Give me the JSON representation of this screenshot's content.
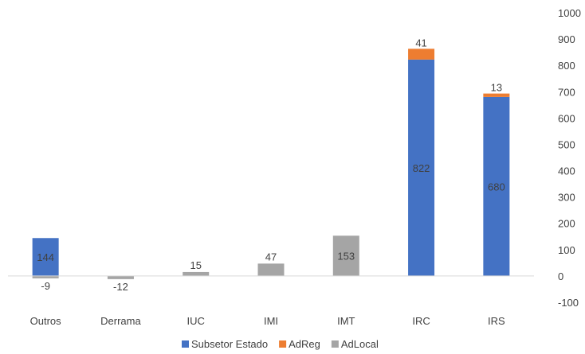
{
  "chart_data": {
    "type": "bar",
    "stacked": true,
    "categories": [
      "Outros",
      "Derrama",
      "IUC",
      "IMI",
      "IMT",
      "IRC",
      "IRS"
    ],
    "series": [
      {
        "name": "Subsetor Estado",
        "color": "#4472C4",
        "values": [
          144,
          0,
          0,
          0,
          0,
          822,
          680
        ]
      },
      {
        "name": "AdReg",
        "color": "#ED7D31",
        "values": [
          0,
          0,
          0,
          0,
          0,
          41,
          13
        ]
      },
      {
        "name": "AdLocal",
        "color": "#A5A5A5",
        "values": [
          -9,
          -12,
          15,
          47,
          153,
          0,
          0
        ]
      }
    ],
    "data_labels": [
      {
        "category": "Outros",
        "series": "Subsetor Estado",
        "text": "144"
      },
      {
        "category": "Outros",
        "series": "AdLocal",
        "text": "-9"
      },
      {
        "category": "Derrama",
        "series": "AdLocal",
        "text": "-12"
      },
      {
        "category": "IUC",
        "series": "AdLocal",
        "text": "15"
      },
      {
        "category": "IMI",
        "series": "AdLocal",
        "text": "47"
      },
      {
        "category": "IMT",
        "series": "AdLocal",
        "text": "153"
      },
      {
        "category": "IRC",
        "series": "Subsetor Estado",
        "text": "822"
      },
      {
        "category": "IRC",
        "series": "AdReg",
        "text": "41"
      },
      {
        "category": "IRS",
        "series": "Subsetor Estado",
        "text": "680"
      },
      {
        "category": "IRS",
        "series": "AdReg",
        "text": "13"
      }
    ],
    "ylim": [
      -100,
      1000
    ],
    "yticks": [
      "1000",
      "900",
      "800",
      "700",
      "600",
      "500",
      "400",
      "300",
      "200",
      "100",
      "0",
      "-100"
    ],
    "y_axis_position": "right",
    "grid": false,
    "legend_position": "bottom"
  }
}
